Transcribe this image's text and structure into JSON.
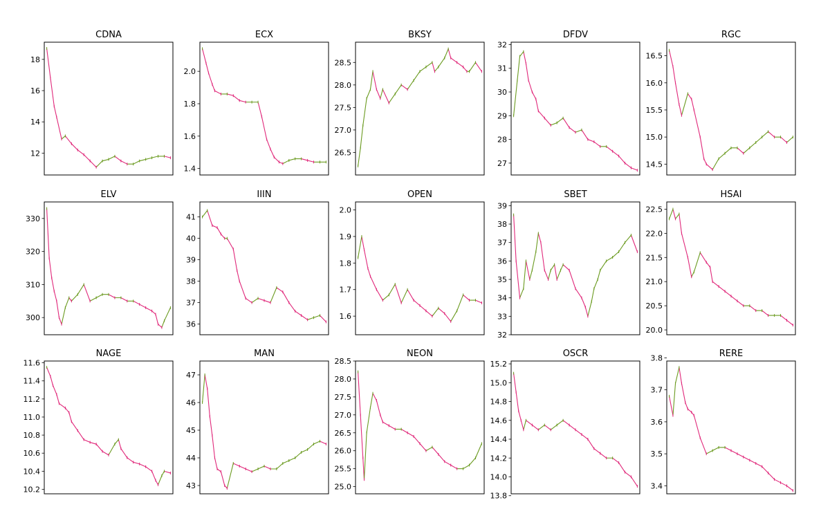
{
  "figure": {
    "colors": {
      "up": "#6a9a1f",
      "down": "#e0287a",
      "axis": "#000000",
      "background": "#ffffff"
    }
  },
  "chart_data": [
    {
      "type": "line",
      "title": "CDNA",
      "ylim": [
        10.6,
        19.1
      ],
      "yticks": [
        12,
        14,
        16,
        18
      ],
      "x": [
        0,
        3,
        6,
        8,
        12,
        15,
        20,
        25,
        30,
        35,
        40,
        45,
        50,
        55,
        60,
        65,
        70,
        75,
        80,
        85,
        90,
        95,
        100
      ],
      "y": [
        18.7,
        16.8,
        15.0,
        14.3,
        12.9,
        13.1,
        12.6,
        12.2,
        11.9,
        11.5,
        11.1,
        11.5,
        11.6,
        11.8,
        11.5,
        11.3,
        11.3,
        11.5,
        11.6,
        11.7,
        11.8,
        11.8,
        11.7
      ]
    },
    {
      "type": "line",
      "title": "ECX",
      "ylim": [
        1.36,
        2.18
      ],
      "yticks": [
        1.4,
        1.6,
        1.8,
        2.0
      ],
      "x": [
        0,
        3,
        5,
        8,
        10,
        15,
        20,
        25,
        30,
        35,
        40,
        45,
        48,
        52,
        55,
        58,
        62,
        65,
        70,
        75,
        80,
        85,
        90,
        95,
        100
      ],
      "y": [
        2.14,
        2.05,
        1.99,
        1.92,
        1.88,
        1.86,
        1.86,
        1.85,
        1.82,
        1.81,
        1.81,
        1.81,
        1.72,
        1.58,
        1.52,
        1.47,
        1.44,
        1.43,
        1.45,
        1.46,
        1.46,
        1.45,
        1.44,
        1.44,
        1.44
      ]
    },
    {
      "type": "line",
      "title": "BKSY",
      "ylim": [
        26.0,
        28.95
      ],
      "yticks": [
        26.5,
        27.0,
        27.5,
        28.0,
        28.5
      ],
      "x": [
        0,
        2,
        4,
        7,
        10,
        12,
        15,
        18,
        20,
        25,
        30,
        35,
        40,
        45,
        50,
        55,
        60,
        62,
        65,
        70,
        73,
        75,
        80,
        85,
        88,
        90,
        95,
        100
      ],
      "y": [
        26.2,
        26.6,
        27.1,
        27.7,
        27.9,
        28.3,
        27.9,
        27.7,
        27.9,
        27.6,
        27.8,
        28.0,
        27.9,
        28.1,
        28.3,
        28.4,
        28.5,
        28.3,
        28.4,
        28.6,
        28.8,
        28.6,
        28.5,
        28.4,
        28.3,
        28.3,
        28.5,
        28.3
      ]
    },
    {
      "type": "line",
      "title": "DFDV",
      "ylim": [
        26.5,
        32.1
      ],
      "yticks": [
        27,
        28,
        29,
        30,
        31,
        32
      ],
      "x": [
        0,
        3,
        5,
        8,
        10,
        12,
        15,
        18,
        20,
        25,
        30,
        35,
        40,
        45,
        50,
        55,
        60,
        65,
        70,
        75,
        80,
        85,
        90,
        95,
        100
      ],
      "y": [
        29.0,
        30.5,
        31.5,
        31.7,
        31.2,
        30.5,
        30.0,
        29.7,
        29.2,
        28.9,
        28.6,
        28.7,
        28.9,
        28.5,
        28.3,
        28.4,
        28.0,
        27.9,
        27.7,
        27.7,
        27.5,
        27.3,
        27.0,
        26.8,
        26.7
      ]
    },
    {
      "type": "line",
      "title": "RGC",
      "ylim": [
        14.3,
        16.75
      ],
      "yticks": [
        14.5,
        15.0,
        15.5,
        16.0,
        16.5
      ],
      "x": [
        0,
        3,
        5,
        8,
        10,
        15,
        18,
        20,
        25,
        28,
        30,
        35,
        40,
        45,
        50,
        55,
        60,
        65,
        70,
        75,
        80,
        85,
        90,
        95,
        100
      ],
      "y": [
        16.6,
        16.3,
        16.0,
        15.6,
        15.4,
        15.8,
        15.7,
        15.5,
        15.0,
        14.6,
        14.5,
        14.4,
        14.6,
        14.7,
        14.8,
        14.8,
        14.7,
        14.8,
        14.9,
        15.0,
        15.1,
        15.0,
        15.0,
        14.9,
        15.0
      ]
    },
    {
      "type": "line",
      "title": "ELV",
      "ylim": [
        294.8,
        335.0
      ],
      "yticks": [
        300,
        310,
        320,
        330
      ],
      "x": [
        0,
        2,
        4,
        6,
        8,
        10,
        12,
        15,
        18,
        20,
        25,
        30,
        35,
        40,
        45,
        50,
        55,
        60,
        65,
        70,
        75,
        80,
        85,
        88,
        90,
        93,
        95,
        100
      ],
      "y": [
        333,
        318,
        312,
        308,
        305,
        300,
        298,
        303,
        306,
        305,
        307,
        310,
        305,
        306,
        307,
        307,
        306,
        306,
        305,
        305,
        304,
        303,
        302,
        301,
        298,
        297,
        299,
        303
      ]
    },
    {
      "type": "line",
      "title": "IIIN",
      "ylim": [
        35.5,
        41.7
      ],
      "yticks": [
        36,
        37,
        38,
        39,
        40,
        41
      ],
      "x": [
        0,
        4,
        8,
        12,
        15,
        18,
        20,
        25,
        28,
        30,
        35,
        40,
        45,
        50,
        55,
        60,
        65,
        70,
        75,
        80,
        85,
        90,
        95,
        100
      ],
      "y": [
        41.0,
        41.3,
        40.6,
        40.5,
        40.2,
        40.0,
        40.0,
        39.5,
        38.5,
        38.0,
        37.2,
        37.0,
        37.2,
        37.1,
        37.0,
        37.7,
        37.5,
        37.0,
        36.6,
        36.4,
        36.2,
        36.3,
        36.4,
        36.1
      ]
    },
    {
      "type": "line",
      "title": "OPEN",
      "ylim": [
        1.53,
        2.03
      ],
      "yticks": [
        1.6,
        1.7,
        1.8,
        1.9,
        2.0
      ],
      "x": [
        0,
        3,
        5,
        8,
        10,
        15,
        20,
        25,
        30,
        35,
        40,
        45,
        50,
        55,
        60,
        65,
        70,
        75,
        80,
        85,
        90,
        95,
        100
      ],
      "y": [
        1.82,
        1.9,
        1.85,
        1.78,
        1.75,
        1.7,
        1.66,
        1.68,
        1.72,
        1.65,
        1.7,
        1.66,
        1.64,
        1.62,
        1.6,
        1.63,
        1.61,
        1.58,
        1.62,
        1.68,
        1.66,
        1.66,
        1.65
      ]
    },
    {
      "type": "line",
      "title": "SBET",
      "ylim": [
        32.0,
        39.2
      ],
      "yticks": [
        32,
        33,
        34,
        35,
        36,
        37,
        38,
        39
      ],
      "x": [
        0,
        2,
        5,
        8,
        10,
        13,
        15,
        18,
        20,
        22,
        25,
        28,
        30,
        33,
        35,
        38,
        40,
        45,
        50,
        55,
        58,
        60,
        63,
        65,
        68,
        70,
        75,
        80,
        85,
        90,
        95,
        100
      ],
      "y": [
        38.5,
        36.0,
        34.0,
        34.5,
        36.0,
        35.0,
        35.5,
        36.5,
        37.5,
        37.0,
        35.5,
        35.0,
        35.5,
        35.8,
        35.0,
        35.5,
        35.8,
        35.5,
        34.5,
        34.0,
        33.5,
        33.0,
        33.8,
        34.5,
        35.0,
        35.5,
        36.0,
        36.2,
        36.5,
        37.0,
        37.4,
        36.5
      ]
    },
    {
      "type": "line",
      "title": "HSAI",
      "ylim": [
        19.9,
        22.65
      ],
      "yticks": [
        20.0,
        20.5,
        21.0,
        21.5,
        22.0,
        22.5
      ],
      "x": [
        0,
        3,
        5,
        8,
        10,
        15,
        18,
        20,
        25,
        30,
        33,
        35,
        40,
        45,
        50,
        55,
        60,
        65,
        70,
        75,
        80,
        85,
        90,
        95,
        100
      ],
      "y": [
        22.3,
        22.5,
        22.3,
        22.4,
        22.0,
        21.5,
        21.1,
        21.2,
        21.6,
        21.4,
        21.3,
        21.0,
        20.9,
        20.8,
        20.7,
        20.6,
        20.5,
        20.5,
        20.4,
        20.4,
        20.3,
        20.3,
        20.3,
        20.2,
        20.1
      ]
    },
    {
      "type": "line",
      "title": "NAGE",
      "ylim": [
        10.15,
        11.62
      ],
      "yticks": [
        10.2,
        10.4,
        10.6,
        10.8,
        11.0,
        11.2,
        11.4,
        11.6
      ],
      "x": [
        0,
        3,
        5,
        8,
        10,
        15,
        18,
        20,
        25,
        30,
        35,
        40,
        45,
        50,
        55,
        58,
        60,
        65,
        70,
        75,
        80,
        85,
        88,
        90,
        93,
        95,
        100
      ],
      "y": [
        11.55,
        11.45,
        11.35,
        11.25,
        11.15,
        11.1,
        11.05,
        10.95,
        10.85,
        10.75,
        10.72,
        10.7,
        10.62,
        10.58,
        10.7,
        10.75,
        10.65,
        10.55,
        10.5,
        10.48,
        10.45,
        10.4,
        10.3,
        10.25,
        10.35,
        10.4,
        10.38
      ]
    },
    {
      "type": "line",
      "title": "MAN",
      "ylim": [
        42.7,
        47.5
      ],
      "yticks": [
        43,
        44,
        45,
        46,
        47
      ],
      "x": [
        0,
        2,
        4,
        6,
        8,
        10,
        12,
        15,
        18,
        20,
        25,
        30,
        35,
        40,
        45,
        50,
        55,
        60,
        65,
        70,
        75,
        80,
        85,
        90,
        95,
        100
      ],
      "y": [
        46.0,
        47.0,
        46.5,
        45.5,
        44.8,
        44.0,
        43.6,
        43.5,
        43.0,
        42.9,
        43.8,
        43.7,
        43.6,
        43.5,
        43.6,
        43.7,
        43.6,
        43.6,
        43.8,
        43.9,
        44.0,
        44.2,
        44.3,
        44.5,
        44.6,
        44.5
      ]
    },
    {
      "type": "line",
      "title": "NEON",
      "ylim": [
        24.8,
        28.5
      ],
      "yticks": [
        25.0,
        25.5,
        26.0,
        26.5,
        27.0,
        27.5,
        28.0,
        28.5
      ],
      "x": [
        0,
        2,
        4,
        5,
        7,
        10,
        12,
        15,
        18,
        20,
        25,
        30,
        35,
        40,
        45,
        50,
        55,
        60,
        65,
        70,
        75,
        80,
        85,
        90,
        95,
        100
      ],
      "y": [
        28.2,
        27.0,
        25.8,
        25.2,
        26.5,
        27.2,
        27.6,
        27.4,
        27.0,
        26.8,
        26.7,
        26.6,
        26.6,
        26.5,
        26.4,
        26.2,
        26.0,
        26.1,
        25.9,
        25.7,
        25.6,
        25.5,
        25.5,
        25.6,
        25.8,
        26.2
      ]
    },
    {
      "type": "line",
      "title": "OSCR",
      "ylim": [
        13.82,
        15.23
      ],
      "yticks": [
        13.8,
        14.0,
        14.2,
        14.4,
        14.6,
        14.8,
        15.0,
        15.2
      ],
      "x": [
        0,
        2,
        4,
        6,
        8,
        10,
        15,
        20,
        25,
        30,
        35,
        40,
        45,
        50,
        55,
        60,
        65,
        70,
        75,
        80,
        85,
        90,
        95,
        100
      ],
      "y": [
        15.1,
        14.9,
        14.7,
        14.6,
        14.5,
        14.6,
        14.55,
        14.5,
        14.55,
        14.5,
        14.55,
        14.6,
        14.55,
        14.5,
        14.45,
        14.4,
        14.3,
        14.25,
        14.2,
        14.2,
        14.15,
        14.05,
        14.0,
        13.9
      ]
    },
    {
      "type": "line",
      "title": "RERE",
      "ylim": [
        3.375,
        3.79
      ],
      "yticks": [
        3.4,
        3.5,
        3.6,
        3.7,
        3.8
      ],
      "x": [
        0,
        3,
        5,
        8,
        10,
        13,
        15,
        18,
        20,
        25,
        30,
        35,
        40,
        45,
        50,
        55,
        60,
        65,
        70,
        75,
        80,
        85,
        90,
        95,
        100
      ],
      "y": [
        3.68,
        3.62,
        3.72,
        3.77,
        3.72,
        3.66,
        3.64,
        3.63,
        3.62,
        3.55,
        3.5,
        3.51,
        3.52,
        3.52,
        3.51,
        3.5,
        3.49,
        3.48,
        3.47,
        3.46,
        3.44,
        3.42,
        3.41,
        3.4,
        3.385
      ]
    }
  ]
}
